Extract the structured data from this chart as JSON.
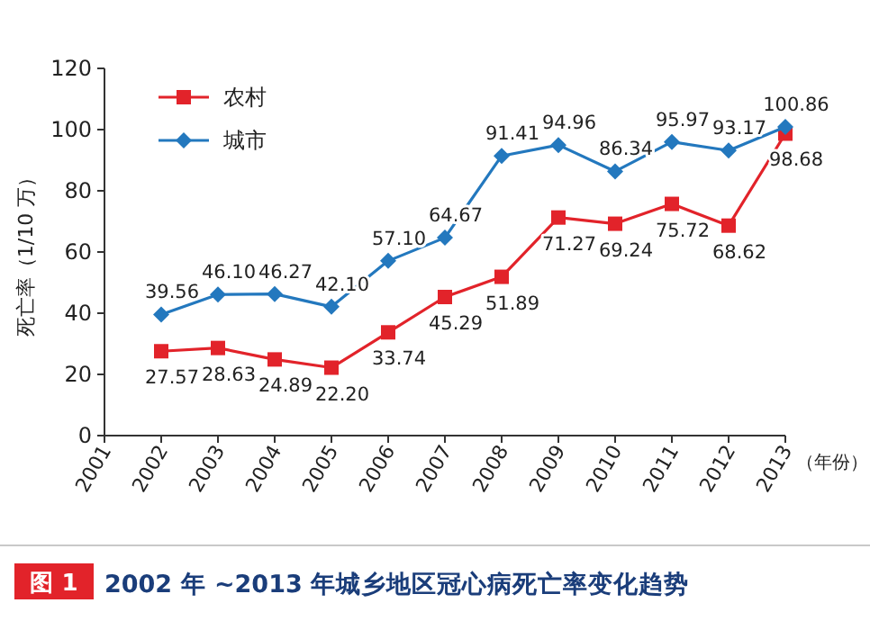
{
  "chart_data": {
    "type": "line",
    "title": "2002 年 ~2013 年城乡地区冠心病死亡率变化趋势",
    "annotations": [
      "图 1"
    ],
    "xlabel": "（年份）",
    "ylabel": "死亡率（1/10 万）",
    "x": [
      2002,
      2003,
      2004,
      2005,
      2006,
      2007,
      2008,
      2009,
      2010,
      2011,
      2012,
      2013
    ],
    "xlim": [
      2001,
      2013
    ],
    "xticks": [
      2001,
      2002,
      2003,
      2004,
      2005,
      2006,
      2007,
      2008,
      2009,
      2010,
      2011,
      2012,
      2013
    ],
    "ylim": [
      0,
      120
    ],
    "yticks": [
      0,
      20,
      40,
      60,
      80,
      100,
      120
    ],
    "legend": "top left",
    "grid": false,
    "series": [
      {
        "name": "农村",
        "color": "#e2232a",
        "marker": "square",
        "values": [
          27.57,
          28.63,
          24.89,
          22.2,
          33.74,
          45.29,
          51.89,
          71.27,
          69.24,
          75.72,
          68.62,
          98.68
        ],
        "value_labels": [
          "27.57",
          "28.63",
          "24.89",
          "22.20",
          "33.74",
          "45.29",
          "51.89",
          "71.27",
          "69.24",
          "75.72",
          "68.62",
          "98.68"
        ]
      },
      {
        "name": "城市",
        "color": "#2378be",
        "marker": "diamond",
        "values": [
          39.56,
          46.1,
          46.27,
          42.1,
          57.1,
          64.67,
          91.41,
          94.96,
          86.34,
          95.97,
          93.17,
          100.86
        ],
        "value_labels": [
          "39.56",
          "46.10",
          "46.27",
          "42.10",
          "57.10",
          "64.67",
          "91.41",
          "94.96",
          "86.34",
          "95.97",
          "93.17",
          "100.86"
        ]
      }
    ]
  }
}
